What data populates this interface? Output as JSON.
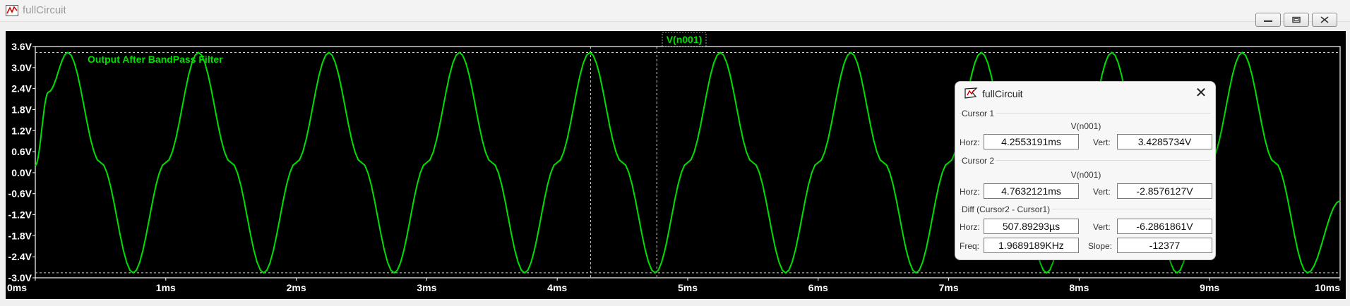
{
  "window": {
    "title": "fullCircuit",
    "buttons": [
      "minimize",
      "restore",
      "close"
    ]
  },
  "plot": {
    "trace_label": "V(n001)",
    "annotation": "Output After BandPass Filter",
    "trace_color": "#00e000",
    "background": "#000000"
  },
  "chart_data": {
    "type": "line",
    "title": "V(n001)",
    "xlabel": "",
    "ylabel": "",
    "xlim": [
      0,
      10
    ],
    "ylim": [
      -3.0,
      3.6
    ],
    "x_unit": "ms",
    "y_unit": "V",
    "x_ticks": [
      "0ms",
      "1ms",
      "2ms",
      "3ms",
      "4ms",
      "5ms",
      "6ms",
      "7ms",
      "8ms",
      "9ms",
      "10ms"
    ],
    "y_ticks": [
      "3.6V",
      "3.0V",
      "2.4V",
      "1.8V",
      "1.2V",
      "0.6V",
      "0.0V",
      "-0.6V",
      "-1.2V",
      "-1.8V",
      "-2.4V",
      "-3.0V"
    ],
    "grid": false,
    "series": [
      {
        "name": "V(n001)",
        "x": [
          0.0,
          0.1,
          0.25,
          0.5,
          0.75,
          1.0,
          1.25,
          1.5,
          1.75,
          2.0,
          2.25,
          2.5,
          2.75,
          3.0,
          3.25,
          3.5,
          3.75,
          4.0,
          4.25,
          4.5,
          4.75,
          5.0,
          5.25,
          5.5,
          5.75,
          6.0,
          6.25,
          6.5,
          6.75,
          7.0,
          7.25,
          7.5,
          7.75,
          8.0,
          8.25,
          8.5,
          8.75,
          9.0,
          9.25,
          9.5,
          9.75,
          10.0
        ],
        "y": [
          0.2,
          2.3,
          3.43,
          0.29,
          -2.86,
          0.29,
          3.43,
          0.29,
          -2.86,
          0.29,
          3.43,
          0.29,
          -2.86,
          0.29,
          3.43,
          0.29,
          -2.86,
          0.29,
          3.43,
          0.29,
          -2.86,
          0.29,
          3.43,
          0.29,
          -2.86,
          0.29,
          3.43,
          0.29,
          -2.86,
          0.29,
          3.43,
          0.29,
          -2.86,
          0.29,
          3.43,
          0.29,
          -2.86,
          0.29,
          3.43,
          0.29,
          -2.86,
          -0.8
        ]
      }
    ],
    "cursors": [
      {
        "x": 4.2553191,
        "y": 3.4285734
      },
      {
        "x": 4.7632121,
        "y": -2.8576127
      }
    ]
  },
  "cursor_dialog": {
    "title": "fullCircuit",
    "close_glyph": "✕",
    "cursor1": {
      "label": "Cursor 1",
      "signal": "V(n001)",
      "horz_label": "Horz:",
      "horz": "4.2553191ms",
      "vert_label": "Vert:",
      "vert": "3.4285734V"
    },
    "cursor2": {
      "label": "Cursor 2",
      "signal": "V(n001)",
      "horz_label": "Horz:",
      "horz": "4.7632121ms",
      "vert_label": "Vert:",
      "vert": "-2.8576127V"
    },
    "diff": {
      "label": "Diff (Cursor2 - Cursor1)",
      "horz_label": "Horz:",
      "horz": "507.89293µs",
      "vert_label": "Vert:",
      "vert": "-6.2861861V",
      "freq_label": "Freq:",
      "freq": "1.9689189KHz",
      "slope_label": "Slope:",
      "slope": "-12377"
    }
  }
}
